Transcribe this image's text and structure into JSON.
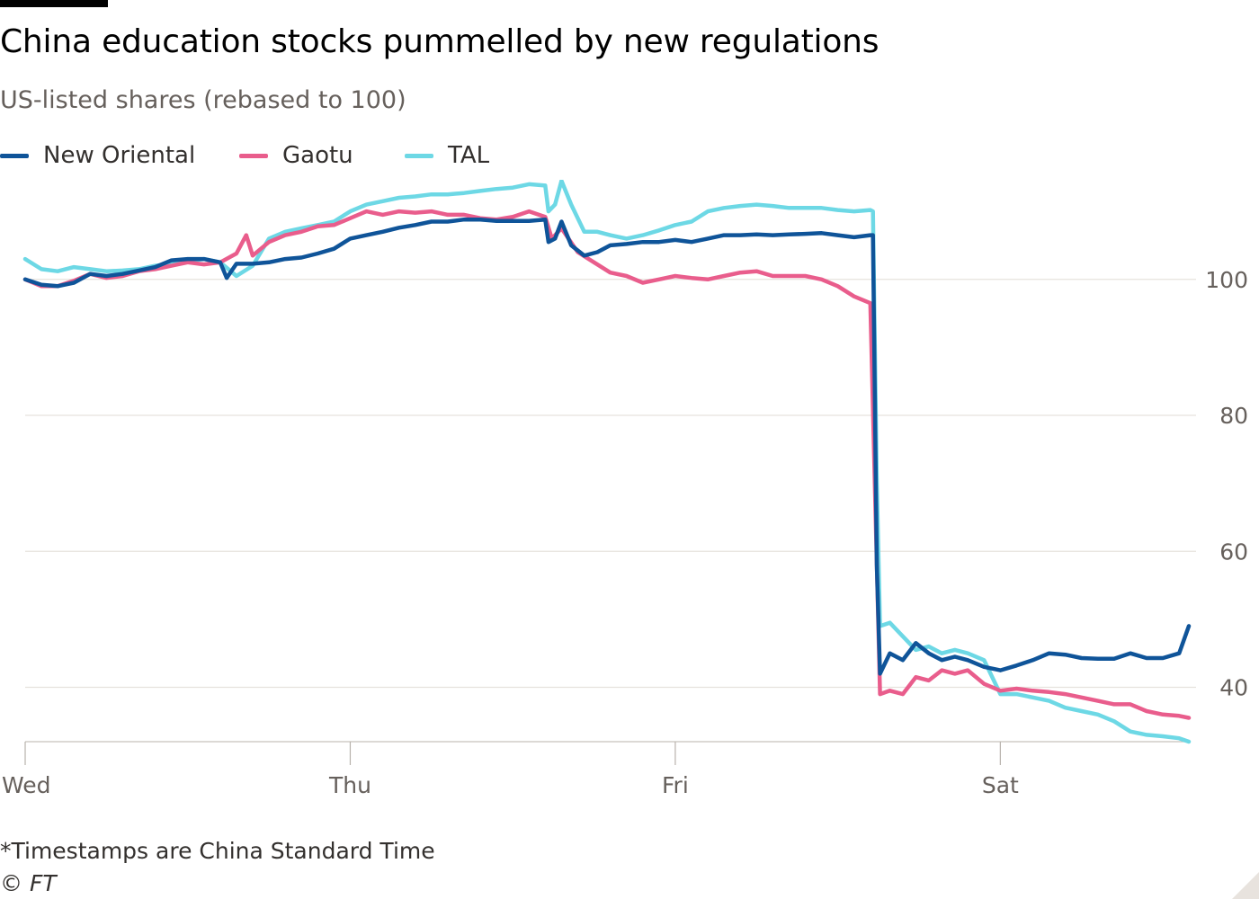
{
  "title": "China education stocks pummelled by new regulations",
  "subtitle": "US-listed shares (rebased to 100)",
  "footnote": "*Timestamps are China Standard Time",
  "source": "© FT",
  "legend": [
    {
      "name": "New Oriental",
      "color": "#0f5499"
    },
    {
      "name": "Gaotu",
      "color": "#e95d8c"
    },
    {
      "name": "TAL",
      "color": "#6dd8e5"
    }
  ],
  "chart_data": {
    "type": "line",
    "title": "China education stocks pummelled by new regulations",
    "subtitle": "US-listed shares (rebased to 100)",
    "xlabel": "",
    "ylabel": "",
    "x_ticks": [
      {
        "label": "Wed",
        "pos": 0
      },
      {
        "label": "Thu",
        "pos": 1
      },
      {
        "label": "Fri",
        "pos": 2
      },
      {
        "label": "Sat",
        "pos": 3
      }
    ],
    "xlim": [
      0,
      3.58
    ],
    "ylim": [
      32,
      112
    ],
    "y_ticks": [
      40,
      60,
      80,
      100
    ],
    "y_axis_side": "right",
    "grid": "horizontal",
    "legend_position": "top-left",
    "series": [
      {
        "name": "New Oriental",
        "color": "#0f5499",
        "points": [
          [
            0.0,
            100.0
          ],
          [
            0.05,
            99.2
          ],
          [
            0.1,
            99.0
          ],
          [
            0.15,
            99.5
          ],
          [
            0.2,
            100.8
          ],
          [
            0.25,
            100.5
          ],
          [
            0.3,
            100.8
          ],
          [
            0.35,
            101.3
          ],
          [
            0.4,
            101.8
          ],
          [
            0.45,
            102.8
          ],
          [
            0.5,
            103.0
          ],
          [
            0.55,
            103.0
          ],
          [
            0.6,
            102.5
          ],
          [
            0.62,
            100.2
          ],
          [
            0.65,
            102.3
          ],
          [
            0.7,
            102.3
          ],
          [
            0.75,
            102.5
          ],
          [
            0.8,
            103.0
          ],
          [
            0.85,
            103.2
          ],
          [
            0.9,
            103.8
          ],
          [
            0.95,
            104.5
          ],
          [
            1.0,
            106.0
          ],
          [
            1.05,
            106.5
          ],
          [
            1.1,
            107.0
          ],
          [
            1.15,
            107.6
          ],
          [
            1.2,
            108.0
          ],
          [
            1.25,
            108.5
          ],
          [
            1.3,
            108.5
          ],
          [
            1.35,
            108.8
          ],
          [
            1.4,
            108.8
          ],
          [
            1.45,
            108.6
          ],
          [
            1.5,
            108.6
          ],
          [
            1.55,
            108.6
          ],
          [
            1.6,
            108.8
          ],
          [
            1.61,
            105.5
          ],
          [
            1.63,
            106.0
          ],
          [
            1.65,
            108.5
          ],
          [
            1.68,
            105.0
          ],
          [
            1.72,
            103.5
          ],
          [
            1.76,
            104.0
          ],
          [
            1.8,
            105.0
          ],
          [
            1.85,
            105.2
          ],
          [
            1.9,
            105.5
          ],
          [
            1.95,
            105.5
          ],
          [
            2.0,
            105.8
          ],
          [
            2.05,
            105.5
          ],
          [
            2.1,
            106.0
          ],
          [
            2.15,
            106.5
          ],
          [
            2.2,
            106.5
          ],
          [
            2.25,
            106.6
          ],
          [
            2.3,
            106.5
          ],
          [
            2.35,
            106.6
          ],
          [
            2.4,
            106.7
          ],
          [
            2.45,
            106.8
          ],
          [
            2.5,
            106.5
          ],
          [
            2.55,
            106.2
          ],
          [
            2.6,
            106.5
          ],
          [
            2.608,
            106.5
          ],
          [
            2.62,
            58.0
          ],
          [
            2.63,
            42.0
          ],
          [
            2.66,
            45.0
          ],
          [
            2.7,
            44.0
          ],
          [
            2.74,
            46.5
          ],
          [
            2.78,
            45.0
          ],
          [
            2.82,
            44.0
          ],
          [
            2.86,
            44.5
          ],
          [
            2.9,
            44.0
          ],
          [
            2.95,
            43.0
          ],
          [
            3.0,
            42.5
          ],
          [
            3.05,
            43.2
          ],
          [
            3.1,
            44.0
          ],
          [
            3.15,
            45.0
          ],
          [
            3.2,
            44.8
          ],
          [
            3.25,
            44.3
          ],
          [
            3.3,
            44.2
          ],
          [
            3.35,
            44.2
          ],
          [
            3.4,
            45.0
          ],
          [
            3.45,
            44.3
          ],
          [
            3.5,
            44.3
          ],
          [
            3.55,
            45.0
          ],
          [
            3.58,
            49.0
          ]
        ]
      },
      {
        "name": "Gaotu",
        "color": "#e95d8c",
        "points": [
          [
            0.0,
            100.0
          ],
          [
            0.05,
            99.0
          ],
          [
            0.1,
            99.0
          ],
          [
            0.15,
            99.8
          ],
          [
            0.2,
            100.8
          ],
          [
            0.25,
            100.2
          ],
          [
            0.3,
            100.5
          ],
          [
            0.35,
            101.2
          ],
          [
            0.4,
            101.5
          ],
          [
            0.45,
            102.0
          ],
          [
            0.5,
            102.5
          ],
          [
            0.55,
            102.2
          ],
          [
            0.6,
            102.5
          ],
          [
            0.65,
            103.8
          ],
          [
            0.68,
            106.5
          ],
          [
            0.7,
            103.5
          ],
          [
            0.75,
            105.5
          ],
          [
            0.8,
            106.5
          ],
          [
            0.85,
            107.0
          ],
          [
            0.9,
            107.8
          ],
          [
            0.95,
            108.0
          ],
          [
            1.0,
            109.0
          ],
          [
            1.05,
            110.0
          ],
          [
            1.1,
            109.5
          ],
          [
            1.15,
            110.0
          ],
          [
            1.2,
            109.8
          ],
          [
            1.25,
            110.0
          ],
          [
            1.3,
            109.5
          ],
          [
            1.35,
            109.5
          ],
          [
            1.4,
            109.0
          ],
          [
            1.45,
            108.8
          ],
          [
            1.5,
            109.2
          ],
          [
            1.55,
            110.0
          ],
          [
            1.6,
            109.2
          ],
          [
            1.62,
            106.0
          ],
          [
            1.65,
            107.5
          ],
          [
            1.7,
            104.0
          ],
          [
            1.75,
            102.5
          ],
          [
            1.8,
            101.0
          ],
          [
            1.85,
            100.5
          ],
          [
            1.9,
            99.5
          ],
          [
            1.95,
            100.0
          ],
          [
            2.0,
            100.5
          ],
          [
            2.05,
            100.2
          ],
          [
            2.1,
            100.0
          ],
          [
            2.15,
            100.5
          ],
          [
            2.2,
            101.0
          ],
          [
            2.25,
            101.2
          ],
          [
            2.3,
            100.5
          ],
          [
            2.35,
            100.5
          ],
          [
            2.4,
            100.5
          ],
          [
            2.45,
            100.0
          ],
          [
            2.5,
            99.0
          ],
          [
            2.55,
            97.5
          ],
          [
            2.6,
            96.5
          ],
          [
            2.63,
            39.0
          ],
          [
            2.66,
            39.5
          ],
          [
            2.7,
            39.0
          ],
          [
            2.74,
            41.5
          ],
          [
            2.78,
            41.0
          ],
          [
            2.82,
            42.5
          ],
          [
            2.86,
            42.0
          ],
          [
            2.9,
            42.5
          ],
          [
            2.95,
            40.5
          ],
          [
            3.0,
            39.5
          ],
          [
            3.05,
            39.8
          ],
          [
            3.1,
            39.5
          ],
          [
            3.15,
            39.3
          ],
          [
            3.2,
            39.0
          ],
          [
            3.25,
            38.5
          ],
          [
            3.3,
            38.0
          ],
          [
            3.35,
            37.5
          ],
          [
            3.4,
            37.5
          ],
          [
            3.45,
            36.5
          ],
          [
            3.5,
            36.0
          ],
          [
            3.55,
            35.8
          ],
          [
            3.58,
            35.5
          ]
        ]
      },
      {
        "name": "TAL",
        "color": "#6dd8e5",
        "points": [
          [
            0.0,
            103.0
          ],
          [
            0.05,
            101.5
          ],
          [
            0.1,
            101.2
          ],
          [
            0.15,
            101.8
          ],
          [
            0.2,
            101.5
          ],
          [
            0.25,
            101.2
          ],
          [
            0.3,
            101.3
          ],
          [
            0.35,
            101.5
          ],
          [
            0.4,
            102.0
          ],
          [
            0.45,
            102.3
          ],
          [
            0.5,
            102.7
          ],
          [
            0.55,
            103.0
          ],
          [
            0.6,
            102.5
          ],
          [
            0.65,
            100.5
          ],
          [
            0.7,
            102.0
          ],
          [
            0.75,
            106.0
          ],
          [
            0.8,
            107.0
          ],
          [
            0.85,
            107.5
          ],
          [
            0.9,
            108.0
          ],
          [
            0.95,
            108.5
          ],
          [
            1.0,
            110.0
          ],
          [
            1.05,
            111.0
          ],
          [
            1.1,
            111.5
          ],
          [
            1.15,
            112.0
          ],
          [
            1.2,
            112.2
          ],
          [
            1.25,
            112.5
          ],
          [
            1.3,
            112.5
          ],
          [
            1.35,
            112.7
          ],
          [
            1.4,
            113.0
          ],
          [
            1.45,
            113.3
          ],
          [
            1.5,
            113.5
          ],
          [
            1.55,
            114.0
          ],
          [
            1.6,
            113.8
          ],
          [
            1.61,
            110.0
          ],
          [
            1.63,
            111.0
          ],
          [
            1.65,
            114.5
          ],
          [
            1.68,
            111.0
          ],
          [
            1.72,
            107.0
          ],
          [
            1.76,
            107.0
          ],
          [
            1.8,
            106.5
          ],
          [
            1.85,
            106.0
          ],
          [
            1.9,
            106.5
          ],
          [
            1.95,
            107.2
          ],
          [
            2.0,
            108.0
          ],
          [
            2.05,
            108.5
          ],
          [
            2.1,
            110.0
          ],
          [
            2.15,
            110.5
          ],
          [
            2.2,
            110.8
          ],
          [
            2.25,
            111.0
          ],
          [
            2.3,
            110.8
          ],
          [
            2.35,
            110.5
          ],
          [
            2.4,
            110.5
          ],
          [
            2.45,
            110.5
          ],
          [
            2.5,
            110.2
          ],
          [
            2.55,
            110.0
          ],
          [
            2.6,
            110.2
          ],
          [
            2.608,
            110.0
          ],
          [
            2.62,
            70.0
          ],
          [
            2.63,
            49.0
          ],
          [
            2.66,
            49.5
          ],
          [
            2.7,
            47.5
          ],
          [
            2.74,
            45.5
          ],
          [
            2.78,
            46.0
          ],
          [
            2.82,
            45.0
          ],
          [
            2.86,
            45.5
          ],
          [
            2.9,
            45.0
          ],
          [
            2.95,
            44.0
          ],
          [
            3.0,
            39.0
          ],
          [
            3.05,
            39.0
          ],
          [
            3.1,
            38.5
          ],
          [
            3.15,
            38.0
          ],
          [
            3.2,
            37.0
          ],
          [
            3.25,
            36.5
          ],
          [
            3.3,
            36.0
          ],
          [
            3.35,
            35.0
          ],
          [
            3.4,
            33.5
          ],
          [
            3.45,
            33.0
          ],
          [
            3.5,
            32.8
          ],
          [
            3.55,
            32.5
          ],
          [
            3.58,
            32.0
          ]
        ]
      }
    ]
  }
}
